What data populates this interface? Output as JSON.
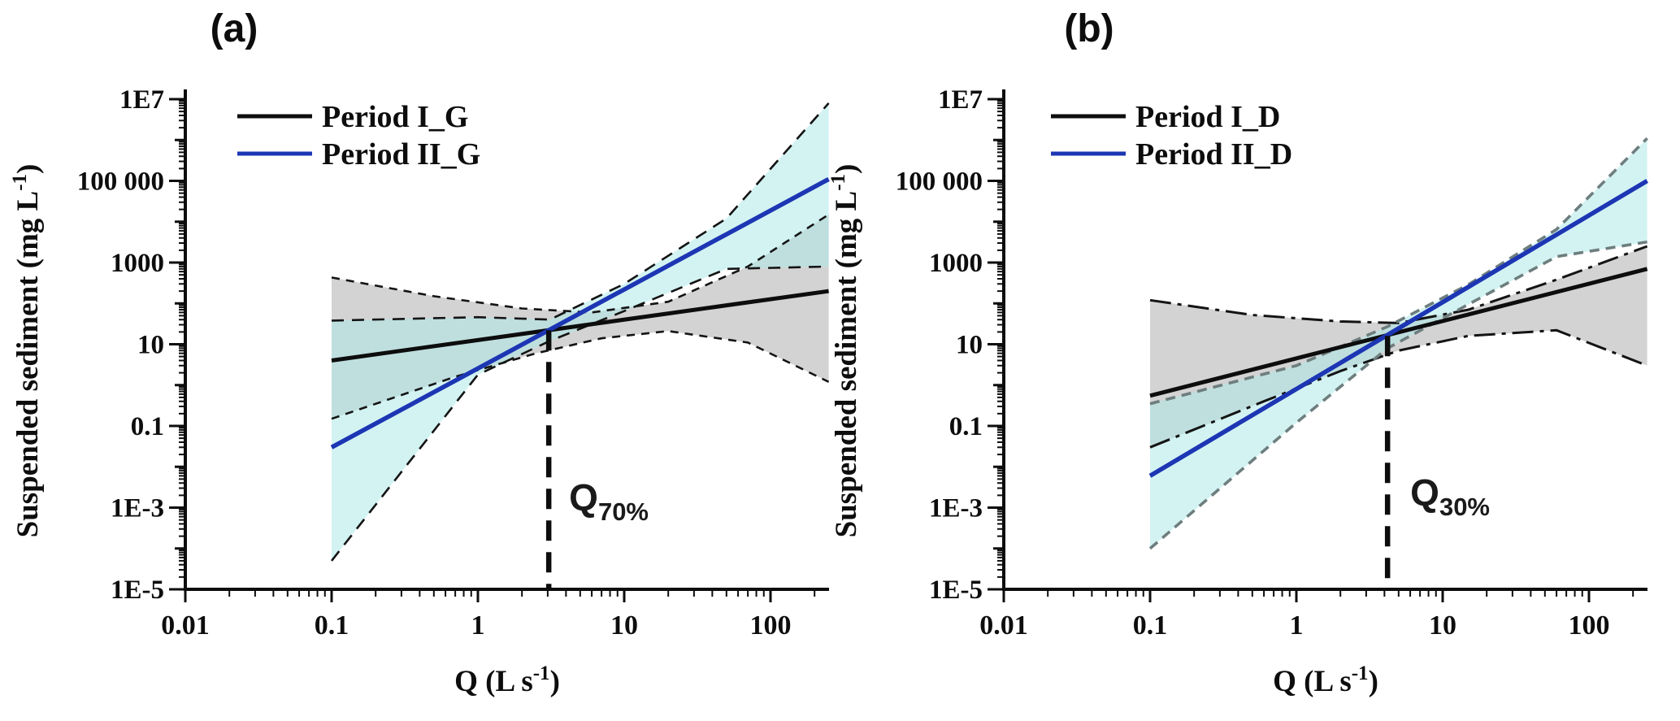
{
  "figure": {
    "background": "#ffffff",
    "text_color": "#0d0d0d"
  },
  "chart_data": [
    {
      "id": "a",
      "type": "line",
      "panel_label": "(a)",
      "title": "",
      "xlabel": "Q (L s-1)",
      "ylabel": "Suspended sediment (mg L-1)",
      "xlabel_parts": {
        "pre": "Q (L s",
        "sup": "-1",
        "post": ")"
      },
      "ylabel_parts": {
        "pre": "Suspended sediment  (mg L",
        "sup": "-1",
        "post": ")"
      },
      "xscale": "log",
      "yscale": "log",
      "xlim": [
        0.01,
        250
      ],
      "ylim": [
        1e-05,
        10000000
      ],
      "grid": false,
      "legend_position": "upper-left-inside",
      "x_ticks": [
        {
          "value": 0.01,
          "label": "0.01"
        },
        {
          "value": 0.1,
          "label": "0.1"
        },
        {
          "value": 1,
          "label": "1"
        },
        {
          "value": 10,
          "label": "10"
        },
        {
          "value": 100,
          "label": "100"
        }
      ],
      "y_ticks": [
        {
          "value": 10000000,
          "label": "1E7"
        },
        {
          "value": 100000,
          "label": "100 000"
        },
        {
          "value": 1000,
          "label": "1000"
        },
        {
          "value": 10,
          "label": "10"
        },
        {
          "value": 0.1,
          "label": "0.1"
        },
        {
          "value": 0.001,
          "label": "1E-3"
        },
        {
          "value": 1e-05,
          "label": "1E-5"
        }
      ],
      "series": [
        {
          "name": "Period I_G",
          "color": "#0d0d0d",
          "line_width": 5,
          "points": [
            [
              0.1,
              4
            ],
            [
              250,
              200
            ]
          ],
          "ci_band": {
            "fill": "#c2c2c2",
            "fill_opacity": 0.72,
            "edge_color": "#141414",
            "edge_dash": "10,8",
            "edge_width": 2.6,
            "upper": [
              [
                0.1,
                430
              ],
              [
                0.5,
                150
              ],
              [
                2,
                75
              ],
              [
                6,
                60
              ],
              [
                20,
                110
              ],
              [
                70,
                800
              ],
              [
                250,
                15000
              ]
            ],
            "lower": [
              [
                0.1,
                0.15
              ],
              [
                0.7,
                1.6
              ],
              [
                2.5,
                6
              ],
              [
                7,
                14
              ],
              [
                20,
                21
              ],
              [
                70,
                11
              ],
              [
                250,
                1.2
              ]
            ]
          }
        },
        {
          "name": "Period II_G",
          "color": "#1c36b4",
          "line_width": 5.5,
          "points": [
            [
              0.1,
              0.03
            ],
            [
              250,
              110000
            ]
          ],
          "ci_band": {
            "fill": "#aee9e9",
            "fill_opacity": 0.55,
            "edge_color": "#141414",
            "edge_dash": "15,10",
            "edge_width": 2.6,
            "upper": [
              [
                0.1,
                38
              ],
              [
                1,
                46
              ],
              [
                3.1,
                40
              ],
              [
                10,
                300
              ],
              [
                50,
                12000
              ],
              [
                250,
                8000000
              ]
            ],
            "lower": [
              [
                0.1,
                5e-05
              ],
              [
                1,
                1.8
              ],
              [
                3.1,
                12
              ],
              [
                10,
                65
              ],
              [
                50,
                700
              ],
              [
                250,
                800
              ]
            ]
          }
        }
      ],
      "vline": {
        "x": 3.05,
        "y_top": 22,
        "color": "#0d0d0d",
        "dash": "25,14",
        "width": 6.5,
        "label_main": "Q",
        "label_sub": "70%"
      }
    },
    {
      "id": "b",
      "type": "line",
      "panel_label": "(b)",
      "title": "",
      "xlabel": "Q (L s-1)",
      "ylabel": "Suspended sediment (mg L-1)",
      "xlabel_parts": {
        "pre": "Q (L s",
        "sup": "-1",
        "post": ")"
      },
      "ylabel_parts": {
        "pre": "Suspended sediment  (mg L",
        "sup": "-1",
        "post": ")"
      },
      "xscale": "log",
      "yscale": "log",
      "xlim": [
        0.01,
        250
      ],
      "ylim": [
        1e-05,
        10000000
      ],
      "grid": false,
      "legend_position": "upper-left-inside",
      "x_ticks": [
        {
          "value": 0.01,
          "label": "0.01"
        },
        {
          "value": 0.1,
          "label": "0.1"
        },
        {
          "value": 1,
          "label": "1"
        },
        {
          "value": 10,
          "label": "10"
        },
        {
          "value": 100,
          "label": "100"
        }
      ],
      "y_ticks": [
        {
          "value": 10000000,
          "label": "1E7"
        },
        {
          "value": 100000,
          "label": "100 000"
        },
        {
          "value": 1000,
          "label": "1000"
        },
        {
          "value": 10,
          "label": "10"
        },
        {
          "value": 0.1,
          "label": "0.1"
        },
        {
          "value": 0.001,
          "label": "1E-3"
        },
        {
          "value": 1e-05,
          "label": "1E-5"
        }
      ],
      "series": [
        {
          "name": "Period I_D",
          "color": "#0d0d0d",
          "line_width": 5,
          "points": [
            [
              0.1,
              0.55
            ],
            [
              250,
              700
            ]
          ],
          "ci_band": {
            "fill": "#c2c2c2",
            "fill_opacity": 0.72,
            "edge_color": "#141414",
            "edge_dash": "26,8,5,8",
            "edge_width": 3,
            "upper": [
              [
                0.1,
                120
              ],
              [
                0.5,
                52
              ],
              [
                2,
                36
              ],
              [
                5,
                33
              ],
              [
                15,
                70
              ],
              [
                60,
                380
              ],
              [
                250,
                2500
              ]
            ],
            "lower": [
              [
                0.1,
                0.03
              ],
              [
                0.6,
                0.4
              ],
              [
                2,
                2.2
              ],
              [
                5,
                7
              ],
              [
                15,
                16
              ],
              [
                60,
                22
              ],
              [
                250,
                3
              ]
            ]
          }
        },
        {
          "name": "Period II_D",
          "color": "#1c36b4",
          "line_width": 5.5,
          "points": [
            [
              0.1,
              0.006
            ],
            [
              250,
              100000
            ]
          ],
          "ci_band": {
            "fill": "#aee9e9",
            "fill_opacity": 0.55,
            "edge_color": "#6e7e7e",
            "edge_dash": "12,8",
            "edge_width": 3.6,
            "upper": [
              [
                0.1,
                0.35
              ],
              [
                1,
                3
              ],
              [
                4.2,
                27
              ],
              [
                15,
                290
              ],
              [
                60,
                6500
              ],
              [
                250,
                1100000
              ]
            ],
            "lower": [
              [
                0.1,
                0.0001
              ],
              [
                1,
                0.12
              ],
              [
                4.2,
                8
              ],
              [
                15,
                95
              ],
              [
                60,
                1400
              ],
              [
                250,
                3200
              ]
            ]
          }
        }
      ],
      "vline": {
        "x": 4.2,
        "y_top": 16,
        "color": "#0d0d0d",
        "dash": "25,14",
        "width": 6.5,
        "label_main": "Q",
        "label_sub": "30%"
      }
    }
  ]
}
